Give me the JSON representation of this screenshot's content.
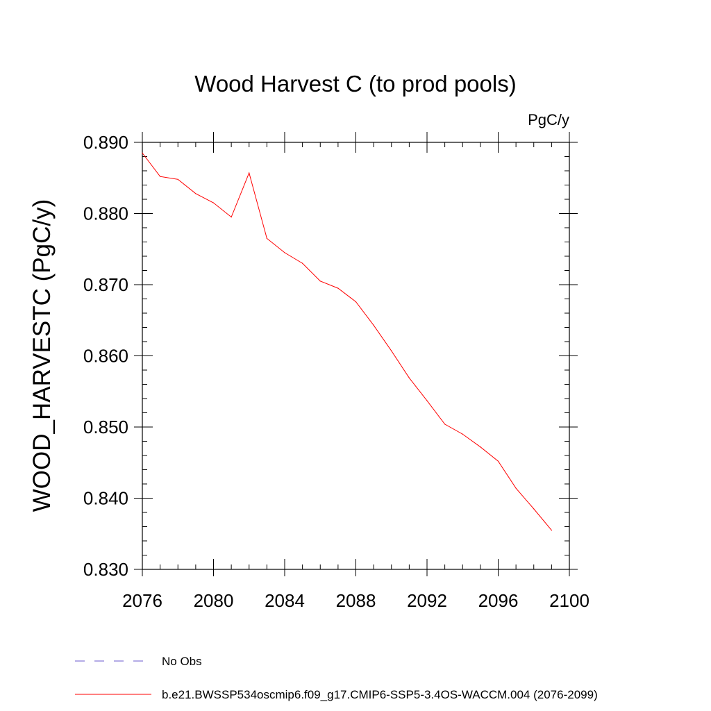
{
  "chart_data": {
    "type": "line",
    "title": "Wood Harvest C (to prod pools)",
    "units_label": "PgC/y",
    "ylabel": "WOOD_HARVESTC  (PgC/y)",
    "xlabel": "",
    "xlim": [
      2076,
      2100
    ],
    "ylim": [
      0.83,
      0.89
    ],
    "x_ticks": [
      2076,
      2080,
      2084,
      2088,
      2092,
      2096,
      2100
    ],
    "y_ticks": [
      "0.830",
      "0.840",
      "0.850",
      "0.860",
      "0.870",
      "0.880",
      "0.890"
    ],
    "grid": false,
    "legend_position": "bottom",
    "series": [
      {
        "name": "b.e21.BWSSP534oscmip6.f09_g17.CMIP6-SSP5-3.4OS-WACCM.004 (2076-2099)",
        "color": "#ff0000",
        "style": "solid",
        "x": [
          2076,
          2077,
          2078,
          2079,
          2080,
          2081,
          2082,
          2083,
          2084,
          2085,
          2086,
          2087,
          2088,
          2089,
          2090,
          2091,
          2092,
          2093,
          2094,
          2095,
          2096,
          2097,
          2098,
          2099
        ],
        "values": [
          0.8885,
          0.8852,
          0.8848,
          0.8828,
          0.8815,
          0.8795,
          0.8857,
          0.8765,
          0.8745,
          0.873,
          0.8705,
          0.8695,
          0.8676,
          0.8643,
          0.8607,
          0.8569,
          0.8537,
          0.8504,
          0.849,
          0.8472,
          0.8452,
          0.8414,
          0.8385,
          0.8355
        ]
      }
    ],
    "legend": [
      {
        "label": "No Obs",
        "color": "#6a5acd",
        "style": "dashed"
      },
      {
        "label": "b.e21.BWSSP534oscmip6.f09_g17.CMIP6-SSP5-3.4OS-WACCM.004 (2076-2099)",
        "color": "#ff0000",
        "style": "solid"
      }
    ]
  }
}
